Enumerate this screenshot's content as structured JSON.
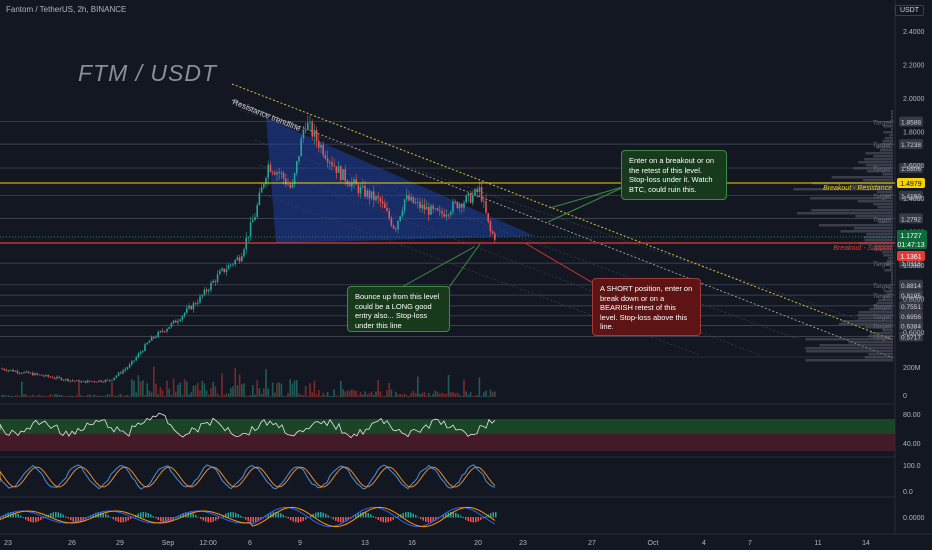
{
  "header": {
    "symbol_line": "Fantom / TetherUS, 2h, BINANCE",
    "currency": "USDT",
    "watermark": "FTM / USDT"
  },
  "price_axis": {
    "ticks": [
      "2.4000",
      "2.2000",
      "2.0000",
      "1.8000",
      "1.6000",
      "1.4000",
      "1.2000",
      "1.0000",
      "0.8000",
      "0.6000"
    ]
  },
  "targets": [
    {
      "label": "Target",
      "value": "1.8588"
    },
    {
      "label": "Target",
      "value": "1.7238"
    },
    {
      "label": "Target",
      "value": "1.5806"
    },
    {
      "label": "Target",
      "value": "1.4150"
    },
    {
      "label": "Target",
      "value": "1.2792"
    },
    {
      "label": "Target",
      "value": "1.0113"
    },
    {
      "label": "Target",
      "value": "0.8814"
    },
    {
      "label": "Target",
      "value": "0.8195"
    },
    {
      "label": "Target",
      "value": "0.7551"
    },
    {
      "label": "Target",
      "value": "0.6956"
    },
    {
      "label": "Target",
      "value": "0.6384"
    },
    {
      "label": "Target",
      "value": "0.5717"
    }
  ],
  "resistance": {
    "label": "Breakout - Resistance",
    "value": "1.4979",
    "color": "#f5d200"
  },
  "support": {
    "label": "Breakout - Support",
    "value": "1.1361",
    "color": "#e53935"
  },
  "last_price": {
    "value": "1.1727",
    "countdown": "01:47:13",
    "color": "#26a69a"
  },
  "trendline_label": "Resistance trendline",
  "notes": {
    "long_entry": "Enter on a breakout or on the retest of this level. Stop-loss under it. Watch BTC, could ruin this.",
    "bounce": "Bounce up from this level could be a LONG good entry also... Stop-loss under this line",
    "short": "A SHORT position, enter on break down or on a BEARISH retest of this level. Stop-loss above this line."
  },
  "volume_axis": [
    "200M",
    "0"
  ],
  "rsi_axis": [
    "80.00",
    "40.00"
  ],
  "stoch_axis": [
    "100.0",
    "0.0"
  ],
  "macd_axis": [
    "0.0000"
  ],
  "time_axis": [
    "23",
    "26",
    "29",
    "Sep",
    "12:00",
    "6",
    "9",
    "13",
    "16",
    "20",
    "23",
    "27",
    "Oct",
    "4",
    "7",
    "11",
    "14"
  ],
  "colors": {
    "bg": "#131722",
    "up": "#26a69a",
    "down": "#ef5350",
    "triangle": "#1e3fa0"
  },
  "chart_data": {
    "type": "candlestick",
    "title": "Fantom / TetherUS, 2h, BINANCE",
    "series_shape": "rally from ~0.30 to ~1.86 then descending triangle consolidating near 1.17",
    "levels": [
      1.8588,
      1.7238,
      1.5806,
      1.4979,
      1.415,
      1.2792,
      1.1361,
      1.0113,
      0.8814,
      0.8195,
      0.7551,
      0.6956,
      0.6384,
      0.5717
    ],
    "last": 1.1727,
    "ylim": [
      0.5,
      2.45
    ]
  }
}
